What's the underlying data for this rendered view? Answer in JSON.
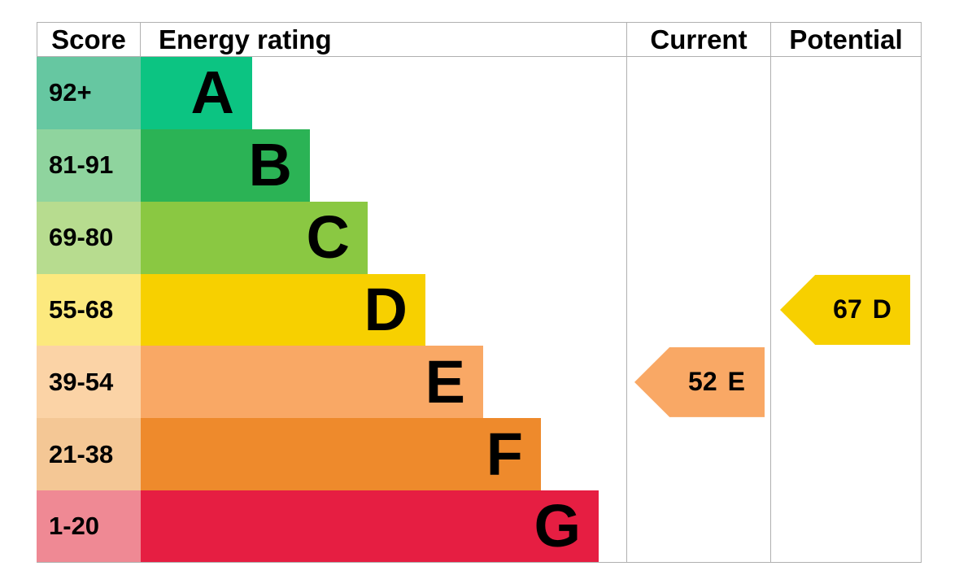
{
  "header": {
    "score": "Score",
    "energy_rating": "Energy rating",
    "current": "Current",
    "potential": "Potential"
  },
  "bands": [
    {
      "letter": "A",
      "score": "92+",
      "bar_color": "#0cc482",
      "score_bg": "#66c7a1"
    },
    {
      "letter": "B",
      "score": "81-91",
      "bar_color": "#2bb355",
      "score_bg": "#8fd49e"
    },
    {
      "letter": "C",
      "score": "69-80",
      "bar_color": "#8ac842",
      "score_bg": "#b7dc8f"
    },
    {
      "letter": "D",
      "score": "55-68",
      "bar_color": "#f7d000",
      "score_bg": "#fce97e"
    },
    {
      "letter": "E",
      "score": "39-54",
      "bar_color": "#f9a865",
      "score_bg": "#fbd3a6"
    },
    {
      "letter": "F",
      "score": "21-38",
      "bar_color": "#ee8a2c",
      "score_bg": "#f4c795"
    },
    {
      "letter": "G",
      "score": "1-20",
      "bar_color": "#e61e42",
      "score_bg": "#ef8994"
    }
  ],
  "indicators": {
    "current": {
      "value": "52",
      "letter": "E",
      "color": "#f9a865"
    },
    "potential": {
      "value": "67",
      "letter": "D",
      "color": "#f7d000"
    }
  },
  "colors": {
    "border": "#b0b0b0",
    "text": "#000000",
    "background": "#ffffff"
  },
  "chart_data": {
    "type": "bar",
    "title": "",
    "columns": [
      "Score",
      "Energy rating",
      "Current",
      "Potential"
    ],
    "categories": [
      "A",
      "B",
      "C",
      "D",
      "E",
      "F",
      "G"
    ],
    "score_ranges": [
      "92+",
      "81-91",
      "69-80",
      "55-68",
      "39-54",
      "21-38",
      "1-20"
    ],
    "band_colors": [
      "#0cc482",
      "#2bb355",
      "#8ac842",
      "#f7d000",
      "#f9a865",
      "#ee8a2c",
      "#e61e42"
    ],
    "bar_lengths_relative": [
      1,
      2,
      3,
      4,
      5,
      6,
      7
    ],
    "current": {
      "score": 52,
      "band": "E"
    },
    "potential": {
      "score": 67,
      "band": "D"
    },
    "legend_position": "none",
    "grid": false
  }
}
